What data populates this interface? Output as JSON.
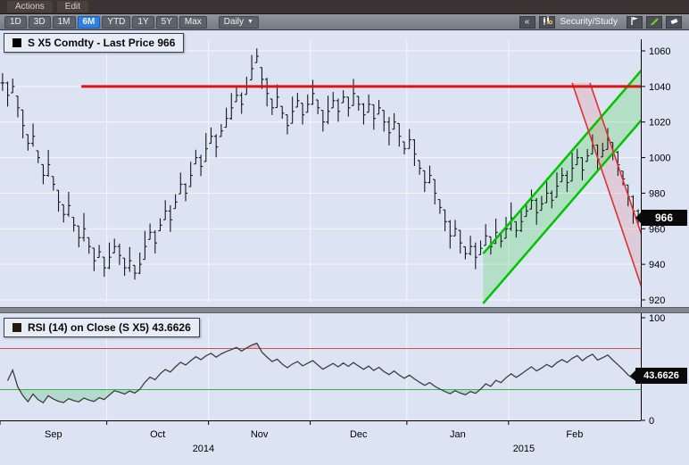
{
  "menubar": {
    "items": [
      {
        "label": "Actions"
      },
      {
        "label": "Edit"
      }
    ]
  },
  "toolbar": {
    "ranges": [
      "1D",
      "3D",
      "1M",
      "6M",
      "YTD",
      "1Y",
      "5Y",
      "Max"
    ],
    "selected_range": "6M",
    "frequency": "Daily",
    "frequency_arrow": "▼",
    "collapse_label": "«",
    "security_study_label": "Security/Study",
    "icons": [
      "candlestick-chart-icon",
      "flag-icon",
      "pencil-icon",
      "eraser-icon"
    ]
  },
  "chart": {
    "background": "#dce4f3",
    "price_panel": {
      "legend": "S X5 Comdty - Last Price 966",
      "marker_color": "#000000",
      "last_price": 966,
      "last_price_label": "966",
      "axis": {
        "min": 920,
        "max": 1060,
        "step": 20,
        "ticks": [
          1060,
          1040,
          1020,
          1000,
          980,
          960,
          940,
          920
        ]
      }
    },
    "rsi_panel": {
      "legend": "RSI (14) on Close (S X5) 43.6626",
      "marker_color": "#241808",
      "value": 43.6626,
      "value_label": "43.6626",
      "period": 14,
      "overbought": 70,
      "oversold": 30,
      "axis_ticks": [
        100,
        0
      ]
    },
    "x_axis": {
      "months": [
        {
          "label": "Sep",
          "start": 0
        },
        {
          "label": "Oct",
          "start": 21
        },
        {
          "label": "Nov",
          "start": 41
        },
        {
          "label": "Dec",
          "start": 61
        },
        {
          "label": "Jan",
          "start": 80
        },
        {
          "label": "Feb",
          "start": 100
        }
      ],
      "years": [
        {
          "label": "2014",
          "center_index": 40
        },
        {
          "label": "2015",
          "center_index": 103
        }
      ],
      "total_bars": 126
    },
    "colors": {
      "bar": "#15181e",
      "resistance": "#e01212",
      "channel_green": "#00c400",
      "channel_green_fill": "rgba(0,200,0,0.18)",
      "channel_red": "#e03030",
      "channel_red_fill": "rgba(230,40,40,0.13)",
      "rsi_line": "#3f3e3c",
      "overbought_line": "#d05050",
      "oversold_line": "#3fae4f",
      "grid": "#ffffff",
      "selected_tab": "#2f7fe0"
    }
  },
  "chart_data": {
    "type": "ohlc",
    "title": "S X5 Comdty - Last Price 966",
    "timeframe": "6M Daily (Sep 2014 - Feb 2015)",
    "ylim": [
      920,
      1060
    ],
    "closes": [
      1042,
      1035,
      1040,
      1028,
      1018,
      1008,
      1012,
      1000,
      990,
      996,
      985,
      975,
      968,
      973,
      962,
      955,
      960,
      950,
      942,
      947,
      938,
      944,
      950,
      945,
      938,
      942,
      935,
      940,
      950,
      958,
      952,
      962,
      970,
      965,
      975,
      985,
      980,
      990,
      1000,
      995,
      1005,
      1012,
      1006,
      1015,
      1022,
      1028,
      1035,
      1030,
      1040,
      1050,
      1057,
      1044,
      1036,
      1028,
      1034,
      1025,
      1018,
      1026,
      1032,
      1024,
      1030,
      1036,
      1028,
      1020,
      1026,
      1032,
      1026,
      1034,
      1028,
      1036,
      1030,
      1024,
      1030,
      1022,
      1028,
      1020,
      1014,
      1020,
      1012,
      1005,
      1010,
      1002,
      994,
      986,
      990,
      980,
      972,
      964,
      956,
      960,
      952,
      946,
      950,
      944,
      949,
      956,
      950,
      958,
      953,
      960,
      966,
      959,
      964,
      970,
      976,
      969,
      974,
      980,
      976,
      984,
      990,
      986,
      994,
      1000,
      993,
      1001,
      1007,
      999,
      1004,
      1010,
      1003,
      996,
      988,
      978,
      970,
      966
    ],
    "range_pattern": [
      10,
      14,
      8,
      12,
      16,
      9,
      13,
      7,
      11,
      15,
      8,
      12
    ],
    "annotations": {
      "resistance": {
        "level": 1040,
        "start_index": 16
      },
      "green_channel": {
        "lower": [
          [
            95,
            918
          ],
          [
            127,
            1024
          ]
        ],
        "upper": [
          [
            95,
            946
          ],
          [
            127,
            1052
          ]
        ]
      },
      "red_channel": {
        "a": [
          [
            112.5,
            1042
          ],
          [
            127,
            920
          ]
        ],
        "b": [
          [
            116,
            1042
          ],
          [
            130.5,
            920
          ]
        ]
      }
    },
    "rsi": {
      "period": 14,
      "on": "close",
      "last_value": 43.6626,
      "overbought": 70,
      "oversold": 30
    }
  }
}
